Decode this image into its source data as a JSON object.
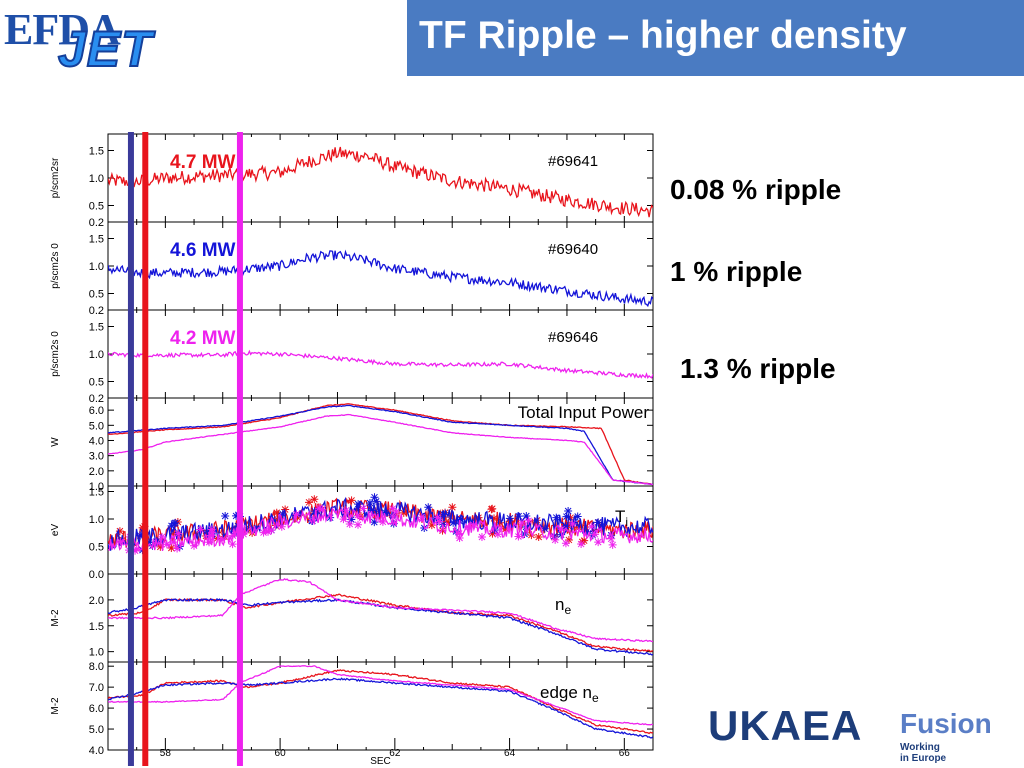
{
  "header": {
    "title": "TF Ripple – higher density"
  },
  "logos": {
    "efda": "EFDA",
    "jet": "JET",
    "ukaea": "UKAEA",
    "fusion": "Fusion",
    "fusion_sub1": "Working",
    "fusion_sub2": "in Europe"
  },
  "annotations": {
    "ripple_red": "0.08 % ripple",
    "ripple_blue": "1 % ripple",
    "ripple_magenta": "1.3 % ripple"
  },
  "colors": {
    "red": "#e8141c",
    "blue": "#1414d8",
    "magenta": "#ee22ee",
    "navy": "#3a3a9a",
    "title_bg": "#4a7bc2"
  },
  "chart_data": {
    "type": "line",
    "xlabel": "SEC",
    "xlim": [
      57,
      66.5
    ],
    "xticks": [
      58,
      60,
      62,
      64,
      66
    ],
    "vlines": [
      {
        "x": 57.4,
        "color": "navy"
      },
      {
        "x": 57.65,
        "color": "red"
      },
      {
        "x": 59.3,
        "color": "magenta"
      }
    ],
    "panels": [
      {
        "id": "p1",
        "ylabel": "p/scm2sr",
        "ylim": [
          0.2,
          1.8
        ],
        "yticks": [
          0.2,
          0.5,
          1.0,
          1.5
        ],
        "ytick_labels": [
          "0.2",
          "0.5",
          "1.0",
          "1.5"
        ],
        "annotation_left": "4.7 MW",
        "annotation_left_color": "red",
        "annotation_right": "#69641",
        "series": [
          {
            "color": "red",
            "noise": 0.25,
            "points": [
              [
                57,
                0.95
              ],
              [
                57.5,
                0.93
              ],
              [
                58,
                1.0
              ],
              [
                59,
                1.05
              ],
              [
                60,
                1.1
              ],
              [
                60.5,
                1.3
              ],
              [
                61,
                1.45
              ],
              [
                61.5,
                1.4
              ],
              [
                62,
                1.2
              ],
              [
                63,
                0.95
              ],
              [
                64,
                0.8
              ],
              [
                65,
                0.6
              ],
              [
                66,
                0.45
              ],
              [
                66.5,
                0.4
              ]
            ]
          }
        ]
      },
      {
        "id": "p2",
        "ylabel": "p/scm2s 0",
        "ylim": [
          0.2,
          1.8
        ],
        "yticks": [
          0.2,
          0.5,
          1.0,
          1.5
        ],
        "ytick_labels": [
          "0.2",
          "0.5",
          "1.0",
          "1.5"
        ],
        "annotation_left": "4.6 MW",
        "annotation_left_color": "blue",
        "annotation_right": "#69640",
        "series": [
          {
            "color": "blue",
            "noise": 0.18,
            "points": [
              [
                57,
                0.95
              ],
              [
                57.5,
                0.88
              ],
              [
                58,
                0.87
              ],
              [
                59,
                0.9
              ],
              [
                60,
                1.0
              ],
              [
                60.5,
                1.15
              ],
              [
                61,
                1.2
              ],
              [
                61.5,
                1.1
              ],
              [
                62,
                0.95
              ],
              [
                63,
                0.8
              ],
              [
                64,
                0.7
              ],
              [
                65,
                0.55
              ],
              [
                66,
                0.4
              ],
              [
                66.5,
                0.35
              ]
            ]
          }
        ]
      },
      {
        "id": "p3",
        "ylabel": "p/scm2s 0",
        "ylim": [
          0.2,
          1.8
        ],
        "yticks": [
          0.2,
          0.5,
          1.0,
          1.5
        ],
        "ytick_labels": [
          "0.2",
          "0.5",
          "1.0",
          "1.5"
        ],
        "annotation_left": "4.2 MW",
        "annotation_left_color": "magenta",
        "annotation_right": "#69646",
        "series": [
          {
            "color": "magenta",
            "noise": 0.07,
            "points": [
              [
                57,
                1.0
              ],
              [
                57.5,
                0.98
              ],
              [
                58,
                0.98
              ],
              [
                59,
                0.98
              ],
              [
                59.3,
                1.02
              ],
              [
                60,
                1.0
              ],
              [
                61,
                0.92
              ],
              [
                62,
                0.82
              ],
              [
                63,
                0.8
              ],
              [
                64,
                0.82
              ],
              [
                65,
                0.7
              ],
              [
                66,
                0.62
              ],
              [
                66.5,
                0.6
              ]
            ]
          }
        ]
      },
      {
        "id": "p4",
        "ylabel": "W",
        "ylim": [
          1.0,
          6.8
        ],
        "yticks": [
          1.0,
          2.0,
          3.0,
          4.0,
          5.0,
          6.0
        ],
        "ytick_labels": [
          "1.0",
          "2.0",
          "3.0",
          "4.0",
          "5.0",
          "6.0"
        ],
        "annotation_right": "Total Input Power",
        "series": [
          {
            "color": "red",
            "noise": 0.05,
            "points": [
              [
                57,
                4.4
              ],
              [
                58,
                4.7
              ],
              [
                59,
                4.9
              ],
              [
                60,
                5.5
              ],
              [
                60.8,
                6.3
              ],
              [
                61.2,
                6.4
              ],
              [
                62,
                6.0
              ],
              [
                63,
                5.3
              ],
              [
                64,
                5.0
              ],
              [
                65,
                4.9
              ],
              [
                65.6,
                4.8
              ],
              [
                66,
                1.4
              ],
              [
                66.5,
                1.1
              ]
            ]
          },
          {
            "color": "blue",
            "noise": 0.05,
            "points": [
              [
                57,
                4.5
              ],
              [
                58,
                4.8
              ],
              [
                59,
                5.0
              ],
              [
                60,
                5.6
              ],
              [
                60.8,
                6.2
              ],
              [
                61.2,
                6.3
              ],
              [
                62,
                5.9
              ],
              [
                63,
                5.2
              ],
              [
                64,
                5.0
              ],
              [
                65,
                4.8
              ],
              [
                65.3,
                4.6
              ],
              [
                65.8,
                1.4
              ],
              [
                66.5,
                1.1
              ]
            ]
          },
          {
            "color": "magenta",
            "noise": 0.04,
            "points": [
              [
                57,
                3.1
              ],
              [
                57.6,
                3.4
              ],
              [
                58,
                3.9
              ],
              [
                59,
                4.4
              ],
              [
                60,
                4.9
              ],
              [
                60.8,
                5.6
              ],
              [
                61.2,
                5.7
              ],
              [
                62,
                5.2
              ],
              [
                63,
                4.5
              ],
              [
                64,
                4.2
              ],
              [
                65,
                4.0
              ],
              [
                65.3,
                3.9
              ],
              [
                65.8,
                1.4
              ],
              [
                66.5,
                1.1
              ]
            ]
          }
        ]
      },
      {
        "id": "p5",
        "ylabel": "eV",
        "ylim": [
          0.0,
          1.6
        ],
        "yticks": [
          0.0,
          0.5,
          1.0,
          1.5
        ],
        "ytick_labels": [
          "0.0",
          "0.5",
          "1.0",
          "1.5"
        ],
        "annotation_right": "T",
        "annotation_sub": "i",
        "series": [
          {
            "color": "red",
            "noise": 0.25,
            "markers": true,
            "points": [
              [
                57,
                0.6
              ],
              [
                58,
                0.7
              ],
              [
                59,
                0.8
              ],
              [
                60,
                1.0
              ],
              [
                61,
                1.2
              ],
              [
                62,
                1.15
              ],
              [
                63,
                1.0
              ],
              [
                64,
                0.95
              ],
              [
                65,
                0.85
              ],
              [
                65.8,
                0.8
              ]
            ]
          },
          {
            "color": "blue",
            "noise": 0.25,
            "markers": true,
            "points": [
              [
                57,
                0.6
              ],
              [
                58,
                0.7
              ],
              [
                59,
                0.8
              ],
              [
                60,
                1.0
              ],
              [
                61,
                1.2
              ],
              [
                62,
                1.15
              ],
              [
                63,
                1.0
              ],
              [
                64,
                0.95
              ],
              [
                65,
                0.9
              ],
              [
                65.8,
                0.85
              ]
            ]
          },
          {
            "color": "magenta",
            "noise": 0.2,
            "markers": true,
            "points": [
              [
                57,
                0.5
              ],
              [
                58,
                0.55
              ],
              [
                59,
                0.65
              ],
              [
                60,
                0.95
              ],
              [
                61,
                1.1
              ],
              [
                62,
                1.0
              ],
              [
                63,
                0.85
              ],
              [
                64,
                0.8
              ],
              [
                65,
                0.75
              ],
              [
                65.8,
                0.7
              ]
            ]
          }
        ]
      },
      {
        "id": "p6",
        "ylabel": "M-2",
        "ylim": [
          0.8,
          2.5
        ],
        "yticks": [
          1.0,
          1.5,
          2.0
        ],
        "ytick_labels": [
          "1.0",
          "1.5",
          "2.0"
        ],
        "annotation_right": "n",
        "annotation_sub": "e",
        "series": [
          {
            "color": "red",
            "noise": 0.04,
            "points": [
              [
                57,
                1.7
              ],
              [
                57.6,
                1.75
              ],
              [
                58,
                2.0
              ],
              [
                59,
                2.0
              ],
              [
                59.4,
                1.85
              ],
              [
                60,
                1.95
              ],
              [
                61,
                2.1
              ],
              [
                62,
                1.9
              ],
              [
                63,
                1.75
              ],
              [
                64,
                1.7
              ],
              [
                64.8,
                1.4
              ],
              [
                65.5,
                1.1
              ],
              [
                66.5,
                1.0
              ]
            ]
          },
          {
            "color": "blue",
            "noise": 0.04,
            "points": [
              [
                57,
                1.75
              ],
              [
                57.5,
                1.85
              ],
              [
                58,
                2.0
              ],
              [
                59,
                2.0
              ],
              [
                59.5,
                1.9
              ],
              [
                60,
                1.95
              ],
              [
                61,
                2.0
              ],
              [
                62,
                1.85
              ],
              [
                63,
                1.75
              ],
              [
                64,
                1.65
              ],
              [
                64.8,
                1.35
              ],
              [
                65.5,
                1.05
              ],
              [
                66.5,
                0.95
              ]
            ]
          },
          {
            "color": "magenta",
            "noise": 0.03,
            "points": [
              [
                57,
                1.65
              ],
              [
                58,
                1.65
              ],
              [
                59,
                1.7
              ],
              [
                59.3,
                2.1
              ],
              [
                60,
                2.4
              ],
              [
                60.5,
                2.35
              ],
              [
                61,
                2.0
              ],
              [
                62,
                1.85
              ],
              [
                63,
                1.8
              ],
              [
                64,
                1.75
              ],
              [
                64.8,
                1.45
              ],
              [
                65.5,
                1.25
              ],
              [
                66.5,
                1.2
              ]
            ]
          }
        ]
      },
      {
        "id": "p7",
        "ylabel": "M-2",
        "ylim": [
          4.0,
          8.2
        ],
        "yticks": [
          4.0,
          5.0,
          6.0,
          7.0,
          8.0
        ],
        "ytick_labels": [
          "4.0",
          "5.0",
          "6.0",
          "7.0",
          "8.0"
        ],
        "annotation_right": "edge n",
        "annotation_sub": "e",
        "series": [
          {
            "color": "red",
            "noise": 0.08,
            "points": [
              [
                57,
                6.5
              ],
              [
                57.6,
                6.6
              ],
              [
                58,
                7.2
              ],
              [
                59,
                7.3
              ],
              [
                59.4,
                7.0
              ],
              [
                60,
                7.2
              ],
              [
                61,
                7.8
              ],
              [
                62,
                7.6
              ],
              [
                63,
                7.2
              ],
              [
                64,
                7.0
              ],
              [
                64.8,
                6.0
              ],
              [
                65.5,
                5.2
              ],
              [
                66.5,
                4.8
              ]
            ]
          },
          {
            "color": "blue",
            "noise": 0.08,
            "points": [
              [
                57,
                6.4
              ],
              [
                57.5,
                6.7
              ],
              [
                58,
                7.1
              ],
              [
                59,
                7.2
              ],
              [
                59.5,
                7.1
              ],
              [
                60,
                7.2
              ],
              [
                61,
                7.4
              ],
              [
                62,
                7.2
              ],
              [
                63,
                7.0
              ],
              [
                64,
                6.8
              ],
              [
                64.8,
                5.9
              ],
              [
                65.5,
                5.0
              ],
              [
                66.5,
                4.6
              ]
            ]
          },
          {
            "color": "magenta",
            "noise": 0.05,
            "points": [
              [
                57,
                6.3
              ],
              [
                58,
                6.3
              ],
              [
                59,
                6.4
              ],
              [
                59.3,
                7.2
              ],
              [
                60,
                8.0
              ],
              [
                60.6,
                8.0
              ],
              [
                61,
                7.6
              ],
              [
                62,
                7.3
              ],
              [
                63,
                7.1
              ],
              [
                64,
                6.9
              ],
              [
                64.8,
                6.1
              ],
              [
                65.5,
                5.4
              ],
              [
                66.5,
                5.2
              ]
            ]
          }
        ]
      }
    ]
  }
}
